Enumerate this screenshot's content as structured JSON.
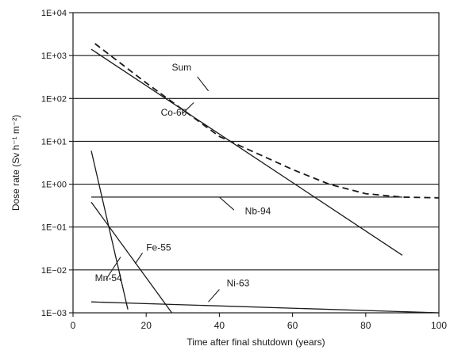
{
  "chart_data": {
    "type": "line",
    "xlabel": "Time after final shutdown (years)",
    "ylabel": "Dose rate (Sv h⁻¹ m⁻²)",
    "xlim": [
      0,
      100
    ],
    "ylim_log10": [
      -3,
      4
    ],
    "y_scale": "log",
    "x_ticks": [
      {
        "value": 0,
        "label": "0"
      },
      {
        "value": 20,
        "label": "20"
      },
      {
        "value": 40,
        "label": "40"
      },
      {
        "value": 60,
        "label": "60"
      },
      {
        "value": 80,
        "label": "80"
      },
      {
        "value": 100,
        "label": "100"
      }
    ],
    "y_ticks": [
      {
        "value": 0.001,
        "label": "1E−03"
      },
      {
        "value": 0.01,
        "label": "1E−02"
      },
      {
        "value": 0.1,
        "label": "1E−01"
      },
      {
        "value": 1,
        "label": "1E+00"
      },
      {
        "value": 10,
        "label": "1E+01"
      },
      {
        "value": 100,
        "label": "1E+02"
      },
      {
        "value": 1000,
        "label": "1E+03"
      },
      {
        "value": 10000,
        "label": "1E+04"
      }
    ],
    "grid": "horizontal",
    "series": [
      {
        "name": "Sum",
        "style": "dashed",
        "points": [
          [
            6,
            1900
          ],
          [
            20,
            230
          ],
          [
            40,
            13
          ],
          [
            60,
            2.2
          ],
          [
            70,
            1.0
          ],
          [
            80,
            0.6
          ],
          [
            90,
            0.5
          ],
          [
            100,
            0.48
          ]
        ]
      },
      {
        "name": "Co-60",
        "style": "solid",
        "points": [
          [
            5,
            1400
          ],
          [
            90,
            0.022
          ]
        ]
      },
      {
        "name": "Nb-94",
        "style": "solid",
        "points": [
          [
            5,
            0.5
          ],
          [
            90,
            0.5
          ]
        ]
      },
      {
        "name": "Fe-55",
        "style": "solid",
        "points": [
          [
            5,
            0.38
          ],
          [
            27,
            0.001
          ]
        ]
      },
      {
        "name": "Mn-54",
        "style": "solid",
        "points": [
          [
            5,
            6.0
          ],
          [
            15,
            0.0012
          ]
        ]
      },
      {
        "name": "Ni-63",
        "style": "solid",
        "points": [
          [
            5,
            0.0018
          ],
          [
            100,
            0.001
          ]
        ]
      }
    ],
    "annotations": [
      {
        "text": "Sum",
        "x": 27,
        "y": 450,
        "leader": [
          [
            34,
            320
          ],
          [
            37,
            150
          ]
        ]
      },
      {
        "text": "Co-60",
        "x": 24,
        "y": 40,
        "leader": [
          [
            30,
            45
          ],
          [
            33,
            80
          ]
        ]
      },
      {
        "text": "Nb-94",
        "x": 47,
        "y": 0.2,
        "leader": [
          [
            44,
            0.25
          ],
          [
            40,
            0.5
          ]
        ]
      },
      {
        "text": "Fe-55",
        "x": 20,
        "y": 0.028,
        "leader": [
          [
            19,
            0.025
          ],
          [
            17,
            0.014
          ]
        ]
      },
      {
        "text": "Mn-54",
        "x": 6,
        "y": 0.0055,
        "leader": [
          [
            9,
            0.006
          ],
          [
            13,
            0.02
          ]
        ]
      },
      {
        "text": "Ni-63",
        "x": 42,
        "y": 0.0042,
        "leader": [
          [
            40,
            0.0035
          ],
          [
            37,
            0.0018
          ]
        ]
      }
    ]
  }
}
